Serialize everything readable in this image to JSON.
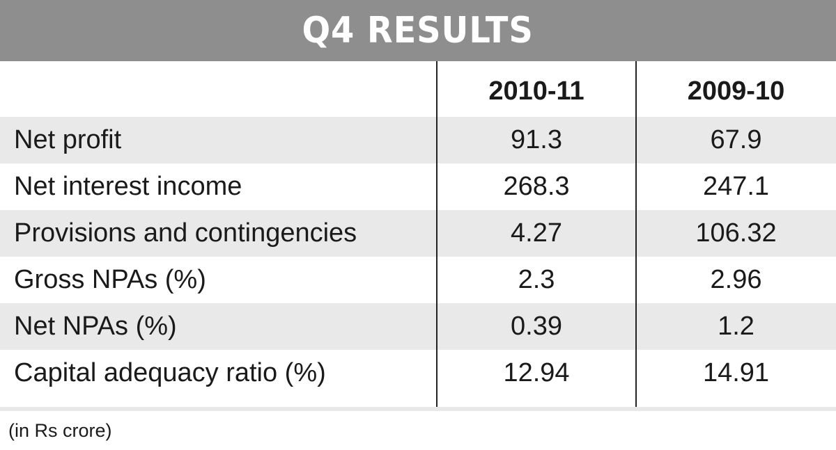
{
  "chart_data": {
    "type": "table",
    "title": "Q4 RESULTS",
    "columns": [
      "2010-11",
      "2009-10"
    ],
    "rows": [
      {
        "label": "Net profit",
        "values": [
          "91.3",
          "67.9"
        ]
      },
      {
        "label": "Net interest income",
        "values": [
          "268.3",
          "247.1"
        ]
      },
      {
        "label": "Provisions and contingencies",
        "values": [
          "4.27",
          "106.32"
        ]
      },
      {
        "label": "Gross NPAs (%)",
        "values": [
          "2.3",
          "2.96"
        ]
      },
      {
        "label": "Net NPAs (%)",
        "values": [
          "0.39",
          "1.2"
        ]
      },
      {
        "label": "Capital adequacy ratio (%)",
        "values": [
          "12.94",
          "14.91"
        ]
      }
    ],
    "footnote": "(in Rs crore)"
  },
  "colors": {
    "banner": "#8e8e8e",
    "row_shade": "#e9e9e9",
    "rule": "#222222"
  }
}
